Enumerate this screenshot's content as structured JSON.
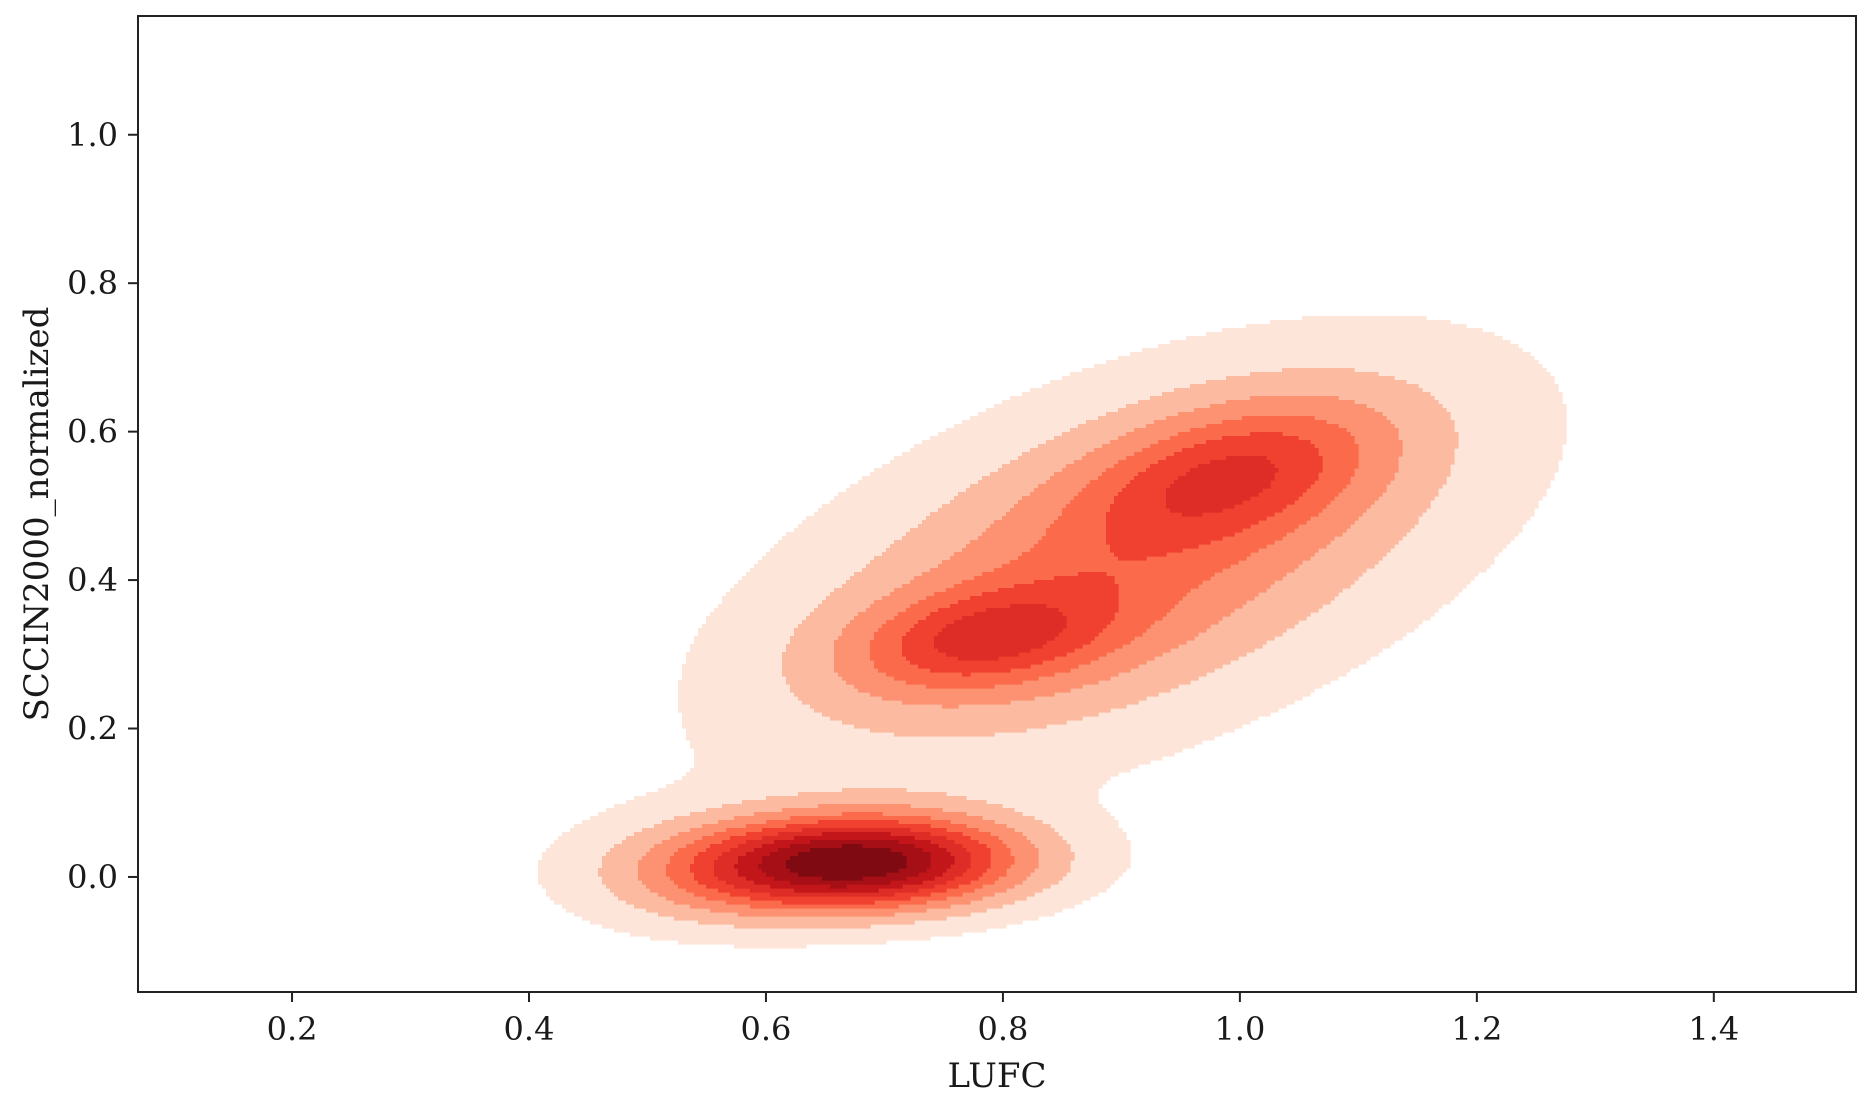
{
  "chart_data": {
    "type": "kde_contour",
    "title": "",
    "xlabel": "LUFC",
    "ylabel": "SCCIN2000_normalized",
    "xlim": [
      0.07,
      1.52
    ],
    "ylim": [
      -0.155,
      1.16
    ],
    "xticks": [
      0.2,
      0.4,
      0.6,
      0.8,
      1.0,
      1.2,
      1.4
    ],
    "yticks": [
      0.0,
      0.2,
      0.4,
      0.6,
      0.8,
      1.0
    ],
    "xtick_labels": [
      "0.2",
      "0.4",
      "0.6",
      "0.8",
      "1.0",
      "1.2",
      "1.4"
    ],
    "ytick_labels": [
      "0.0",
      "0.2",
      "0.4",
      "0.6",
      "0.8",
      "1.0"
    ],
    "grid": false,
    "legend": false,
    "colormap": "Reds",
    "level_colors": [
      "#fee5d9",
      "#fcbba1",
      "#fc9272",
      "#fb6a4a",
      "#f0402f",
      "#de2d26",
      "#c3161b",
      "#a50f15",
      "#800a12"
    ],
    "components": [
      {
        "mean": [
          0.9,
          0.42
        ],
        "sd": [
          0.19,
          0.17
        ],
        "rho": 0.55,
        "weight": 0.58
      },
      {
        "mean": [
          0.78,
          0.32
        ],
        "sd": [
          0.08,
          0.05
        ],
        "rho": 0.3,
        "weight": 0.07
      },
      {
        "mean": [
          1.0,
          0.55
        ],
        "sd": [
          0.09,
          0.07
        ],
        "rho": 0.4,
        "weight": 0.1
      },
      {
        "mean": [
          0.68,
          0.02
        ],
        "sd": [
          0.095,
          0.045
        ],
        "rho": 0.05,
        "weight": 0.21
      },
      {
        "mean": [
          0.55,
          0.0
        ],
        "sd": [
          0.08,
          0.05
        ],
        "rho": 0.0,
        "weight": 0.04
      }
    ],
    "thresholds": [
      0.06,
      0.17,
      0.28,
      0.39,
      0.49,
      0.59,
      0.69,
      0.79,
      0.89
    ]
  }
}
